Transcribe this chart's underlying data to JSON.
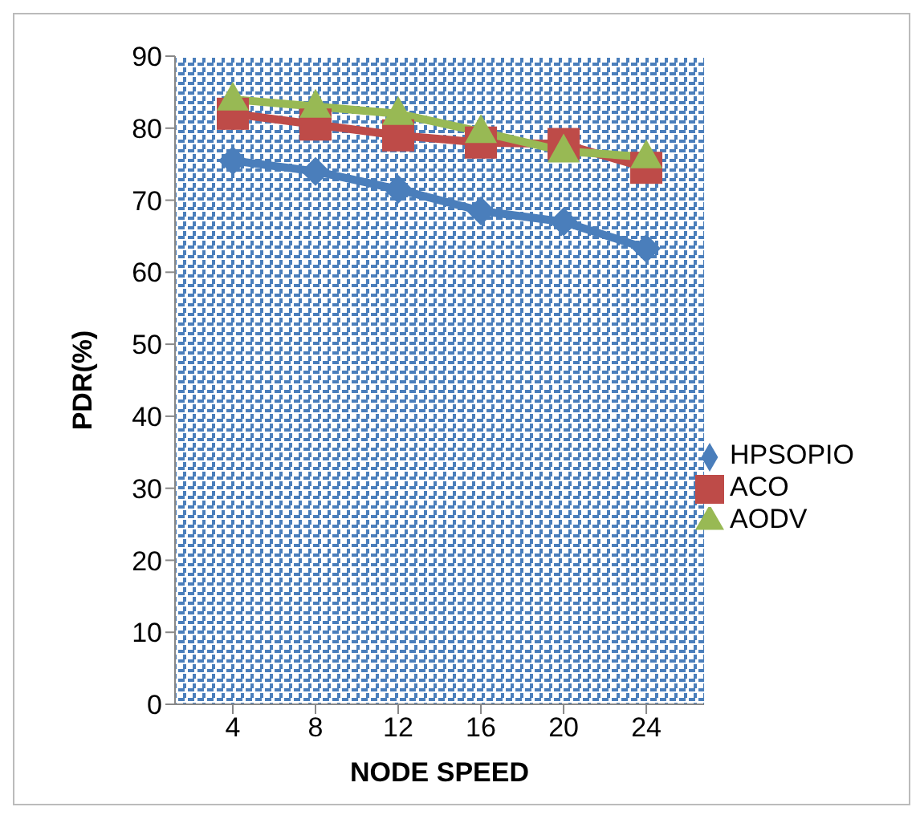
{
  "chart_data": {
    "type": "line",
    "xlabel": "NODE SPEED",
    "ylabel": "PDR(%)",
    "categories": [
      "4",
      "8",
      "12",
      "16",
      "20",
      "24"
    ],
    "series": [
      {
        "name": "HPSOPIO",
        "color": "#4a7ebb",
        "marker": "diamond",
        "values": [
          75.5,
          74,
          71.5,
          68.5,
          67,
          63.3
        ]
      },
      {
        "name": "ACO",
        "color": "#be4b48",
        "marker": "square",
        "values": [
          82,
          80.5,
          79,
          78,
          77.8,
          74.5
        ]
      },
      {
        "name": "AODV",
        "color": "#98b954",
        "marker": "triangle",
        "values": [
          84,
          83,
          82,
          79.5,
          76.8,
          76
        ]
      }
    ],
    "ylim": [
      0,
      90
    ],
    "yticks": [
      0,
      10,
      20,
      30,
      40,
      50,
      60,
      70,
      80,
      90
    ],
    "grid": false,
    "legend": "right"
  }
}
